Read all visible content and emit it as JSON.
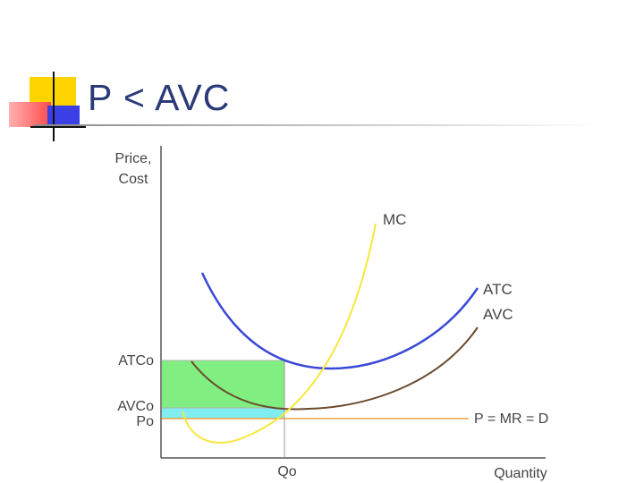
{
  "slide": {
    "title": "P < AVC",
    "colors": {
      "title": "#2b3a78",
      "deco_yellow": "#ffd400",
      "deco_red": "#ff4b4b",
      "deco_blue": "#3a3fe6"
    }
  },
  "diagram": {
    "y_axis_label": [
      "Price,",
      "Cost"
    ],
    "x_axis_label": "Quantity",
    "x_tick": "Qo",
    "y_ticks": [
      "ATCo",
      "AVCo",
      "Po"
    ],
    "curves": {
      "mc": "MC",
      "atc": "ATC",
      "avc": "AVC",
      "demand": "P = MR = D"
    },
    "colors": {
      "mc": "#f5e83c",
      "atc": "#3a48d8",
      "avc": "#6b4a2c",
      "demand": "#f0a040",
      "loss_fixed": "#80ee80",
      "loss_variable": "#80eef0",
      "axis": "#555555",
      "text": "#444444"
    }
  }
}
